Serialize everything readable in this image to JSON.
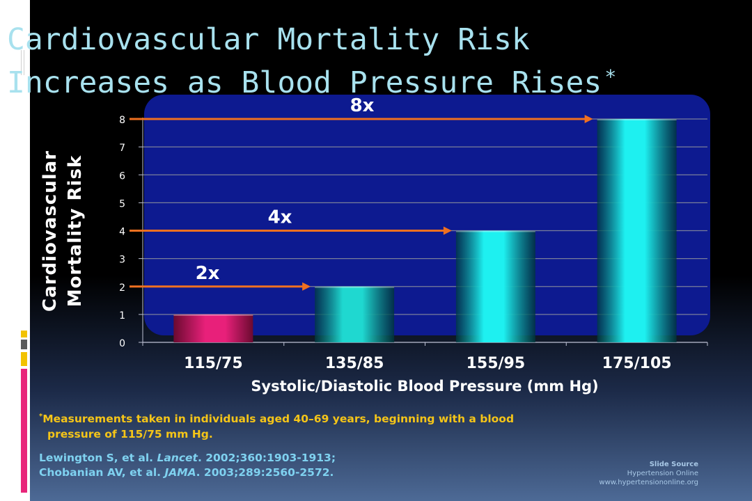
{
  "title": {
    "line1": "Cardiovascular Mortality Risk",
    "line2": "Increases as Blood Pressure Rises",
    "marker": "*"
  },
  "chart_data": {
    "type": "bar",
    "categories": [
      "115/75",
      "135/85",
      "155/95",
      "175/105"
    ],
    "values": [
      1,
      2,
      4,
      8
    ],
    "xlabel": "Systolic/Diastolic Blood Pressure (mm Hg)",
    "ylabel": "Cardiovascular Mortality Risk",
    "ylim": [
      0,
      8
    ],
    "yticks": [
      0,
      1,
      2,
      3,
      4,
      5,
      6,
      7,
      8
    ],
    "grid": true,
    "bar_colors": [
      "#e8207a",
      "#1fd8d0",
      "#1ef0f0",
      "#1ef0f0"
    ],
    "annotations": [
      {
        "text": "2x",
        "level": 2,
        "target_category": 1
      },
      {
        "text": "4x",
        "level": 4,
        "target_category": 2
      },
      {
        "text": "8x",
        "level": 8,
        "target_category": 3
      }
    ]
  },
  "footnote": {
    "marker": "*",
    "line1": "Measurements taken in individuals aged 40–69 years, beginning with a blood",
    "line2": "pressure of 115/75 mm Hg."
  },
  "references": {
    "r1_author": "Lewington S, et al. ",
    "r1_journal": "Lancet",
    "r1_rest": ". 2002;360:1903-1913;",
    "r2_author": "Chobanian AV, et al. ",
    "r2_journal": "JAMA",
    "r2_rest": ". 2003;289:2560-2572."
  },
  "source": {
    "heading": "Slide Source",
    "name": "Hypertension Online",
    "url": "www.hypertensiononline.org"
  },
  "colors": {
    "title": "#a8e1ee",
    "panel": "#0d1a90",
    "arrow": "#f07020",
    "footnote": "#f5c518",
    "references": "#7fd2f0"
  }
}
